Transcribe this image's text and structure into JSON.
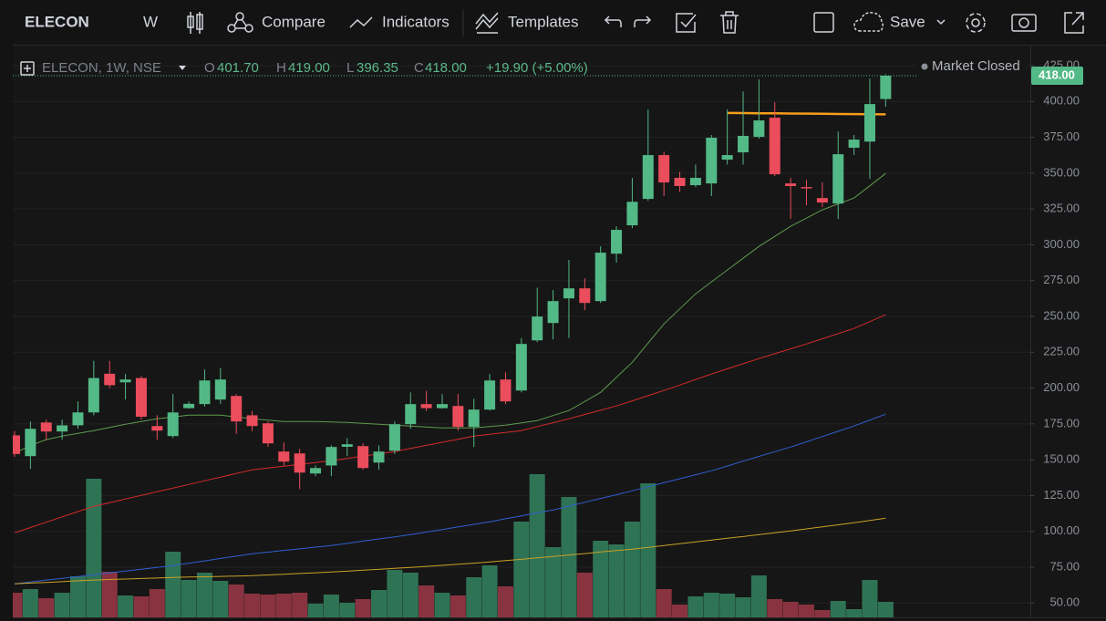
{
  "toolbar": {
    "symbol": "ELECON",
    "interval": "W",
    "compare": "Compare",
    "indicators": "Indicators",
    "templates": "Templates",
    "save": "Save"
  },
  "chart_data": {
    "type": "candlestick",
    "legend": {
      "symbol": "ELECON, 1W, NSE",
      "open_label": "O",
      "open": "401.70",
      "high_label": "H",
      "high": "419.00",
      "low_label": "L",
      "low": "396.35",
      "close_label": "C",
      "close": "418.00",
      "change": "+19.90 (+5.00%)",
      "status": "Market Closed"
    },
    "up_color": "#53b987",
    "down_color": "#eb4d5c",
    "open": [
      167,
      152.5,
      176,
      169.7,
      174,
      183,
      210,
      204,
      207,
      173.5,
      166.5,
      186,
      188.8,
      192,
      194.5,
      181,
      175.4,
      155.7,
      154.4,
      140.4,
      146,
      159,
      159.5,
      148,
      156.3,
      174.8,
      188.8,
      186,
      187.5,
      172.9,
      185,
      206,
      198.3,
      233.3,
      245.4,
      262.6,
      269.6,
      260.7,
      293.8,
      313.6,
      332,
      362.6,
      346.7,
      341.6,
      342.8,
      359.4,
      364.5,
      375.3,
      388.7,
      342.8,
      340.3,
      332.6,
      328.8,
      367.7,
      372,
      401.7
    ],
    "high": [
      170,
      176.7,
      178,
      178,
      190.7,
      219,
      219,
      209.8,
      208.5,
      181,
      195.8,
      190.7,
      213,
      214,
      195.8,
      184,
      176.7,
      162,
      157.6,
      146,
      160,
      165,
      161.4,
      160,
      176.7,
      197,
      198,
      195.8,
      195.8,
      192.6,
      209.8,
      211,
      235,
      270,
      268.4,
      289.4,
      276.6,
      299,
      313,
      346.7,
      394.4,
      365,
      351,
      356,
      376.6,
      394.4,
      407,
      415.4,
      399.5,
      346.7,
      345.4,
      343.5,
      379,
      376.6,
      416,
      419
    ],
    "low": [
      152,
      143.6,
      164,
      164,
      171.6,
      181,
      200,
      192,
      178,
      164,
      165,
      185.6,
      187,
      189,
      168,
      170,
      158.9,
      146,
      129.6,
      138.5,
      138.5,
      152.5,
      143,
      143,
      154,
      171.6,
      184,
      185.6,
      170.3,
      158.9,
      184.3,
      188.8,
      197,
      232,
      234,
      235,
      254.3,
      259.4,
      287.5,
      311.6,
      330.7,
      334,
      337,
      340.3,
      334,
      356,
      356,
      374,
      348,
      318,
      327.6,
      326.3,
      318,
      362.6,
      346,
      396.35
    ],
    "close": [
      154,
      171.6,
      169.7,
      174,
      183,
      207,
      202,
      206,
      180,
      170.3,
      183,
      189,
      205.3,
      206,
      176.7,
      173.5,
      161.4,
      148.7,
      141,
      144.2,
      158.9,
      160.8,
      144.2,
      155.7,
      174.8,
      188.8,
      186,
      188.8,
      172.9,
      185,
      205.3,
      190.7,
      230.8,
      249.9,
      260.7,
      269.6,
      259.4,
      294.5,
      310.4,
      330,
      362.6,
      343.5,
      341,
      346.7,
      374.7,
      362.6,
      376,
      386.8,
      349.2,
      341,
      339.7,
      329.5,
      363.2,
      373.4,
      398.2,
      418
    ],
    "volume": {
      "up_color": "#2f7355",
      "down_color": "#8a3340",
      "lim": [
        0,
        627
      ],
      "values": [
        27,
        31,
        21,
        27,
        45,
        152,
        50,
        24,
        23,
        31,
        72,
        41,
        49,
        40,
        36,
        26,
        25,
        26,
        27,
        15,
        25,
        16,
        20,
        30,
        52,
        49,
        35,
        27,
        24,
        44,
        57,
        34,
        105,
        157,
        77,
        132,
        49,
        84,
        80,
        105,
        147,
        31,
        14,
        23,
        27,
        26,
        22,
        46,
        20,
        17,
        14,
        8,
        18,
        9,
        41,
        17
      ]
    },
    "lines": [
      {
        "color": "#5e9a4e",
        "values": [
          154.4,
          160,
          164,
          166.5,
          168.4,
          170.3,
          172.5,
          174.8,
          176.7,
          178.6,
          179.9,
          181.1,
          181.1,
          181.1,
          179.9,
          178.6,
          177.6,
          176.7,
          176.7,
          176.7,
          176.3,
          176,
          175.4,
          174.8,
          174.1,
          173.5,
          172.9,
          172.2,
          172.2,
          172.2,
          173.1,
          174.1,
          175.7,
          177.3,
          180.8,
          184.3,
          190.6,
          197,
          207.5,
          218,
          231.4,
          244.8,
          255.3,
          265.8,
          274.1,
          282.4,
          290.6,
          298.9,
          305.9,
          312.9,
          318.6,
          324.4,
          328.5,
          332.6,
          341.2,
          349.8
        ]
      },
      {
        "color": "#d42b2b",
        "values": [
          99,
          102.7,
          106.4,
          110.1,
          113.8,
          117.5,
          120,
          122.6,
          125.1,
          127.7,
          130.2,
          132.7,
          135.3,
          137.8,
          140.4,
          142.9,
          144.2,
          145.5,
          146.7,
          148,
          149.3,
          150.9,
          152.5,
          154.1,
          155.7,
          157.9,
          160,
          162.2,
          164.3,
          166.5,
          167.8,
          169,
          170.3,
          173.1,
          175.8,
          178.6,
          181.6,
          184.5,
          187.5,
          191.1,
          194.7,
          198.3,
          202.1,
          206,
          209.8,
          213.4,
          217,
          220.6,
          224,
          227.4,
          230.8,
          234.4,
          238,
          241.6,
          246.4,
          251.2
        ]
      },
      {
        "color": "#2f5fd0",
        "values": [
          63.4,
          64.7,
          66,
          67.2,
          68.5,
          69.7,
          71,
          72.3,
          73.6,
          74.8,
          76.1,
          77.8,
          79.4,
          81.1,
          82.7,
          84.4,
          85.5,
          86.7,
          87.8,
          89,
          90.1,
          91.6,
          93.2,
          94.7,
          96.2,
          97.7,
          99.5,
          101.3,
          103.1,
          104.9,
          106.7,
          108.8,
          110.8,
          112.9,
          114.9,
          117.6,
          120.3,
          123,
          125.6,
          128.3,
          131.1,
          133.9,
          136.7,
          139.5,
          142.3,
          145.6,
          149,
          152.3,
          155.6,
          158.9,
          162.5,
          166.2,
          169.8,
          173.5,
          177.7,
          181.8
        ]
      },
      {
        "color": "#c9a227",
        "values": [
          63.4,
          63.9,
          64.4,
          64.9,
          65.5,
          66,
          66.4,
          66.7,
          67.1,
          67.4,
          67.8,
          68.1,
          68.3,
          68.6,
          68.8,
          69.1,
          69.6,
          70.1,
          70.6,
          71.1,
          71.6,
          72.2,
          72.9,
          73.5,
          74.2,
          74.8,
          75.6,
          76.3,
          77.1,
          77.8,
          78.6,
          79.6,
          80.5,
          81.5,
          82.5,
          83.5,
          84.5,
          85.6,
          86.6,
          87.6,
          88.9,
          90.1,
          91.4,
          92.6,
          93.9,
          95.2,
          96.4,
          97.7,
          99,
          100.3,
          101.7,
          103.2,
          104.6,
          106,
          107.6,
          109.2
        ]
      },
      {
        "color": "#f59c1a",
        "width": 2.5,
        "values": [
          null,
          null,
          null,
          null,
          null,
          null,
          null,
          null,
          null,
          null,
          null,
          null,
          null,
          null,
          null,
          null,
          null,
          null,
          null,
          null,
          null,
          null,
          null,
          null,
          null,
          null,
          null,
          null,
          null,
          null,
          null,
          null,
          null,
          null,
          null,
          null,
          null,
          null,
          null,
          null,
          null,
          null,
          null,
          null,
          null,
          392,
          391.9,
          391.8,
          391.7,
          391.6,
          391.5,
          391.4,
          391.3,
          391.2,
          391.1,
          391
        ]
      }
    ],
    "last_price": {
      "value": 418,
      "label": "418.00"
    },
    "ylim": [
      40,
      439
    ],
    "yticks": [
      {
        "value": 50,
        "label": "50.00"
      },
      {
        "value": 75,
        "label": "75.00"
      },
      {
        "value": 100,
        "label": "100.00"
      },
      {
        "value": 125,
        "label": "125.00"
      },
      {
        "value": 150,
        "label": "150.00"
      },
      {
        "value": 175,
        "label": "175.00"
      },
      {
        "value": 200,
        "label": "200.00"
      },
      {
        "value": 225,
        "label": "225.00"
      },
      {
        "value": 250,
        "label": "250.00"
      },
      {
        "value": 275,
        "label": "275.00"
      },
      {
        "value": 300,
        "label": "300.00"
      },
      {
        "value": 325,
        "label": "325.00"
      },
      {
        "value": 350,
        "label": "350.00"
      },
      {
        "value": 375,
        "label": "375.00"
      },
      {
        "value": 400,
        "label": "400.00"
      },
      {
        "value": 425,
        "label": "425.00"
      }
    ],
    "grid": true
  }
}
